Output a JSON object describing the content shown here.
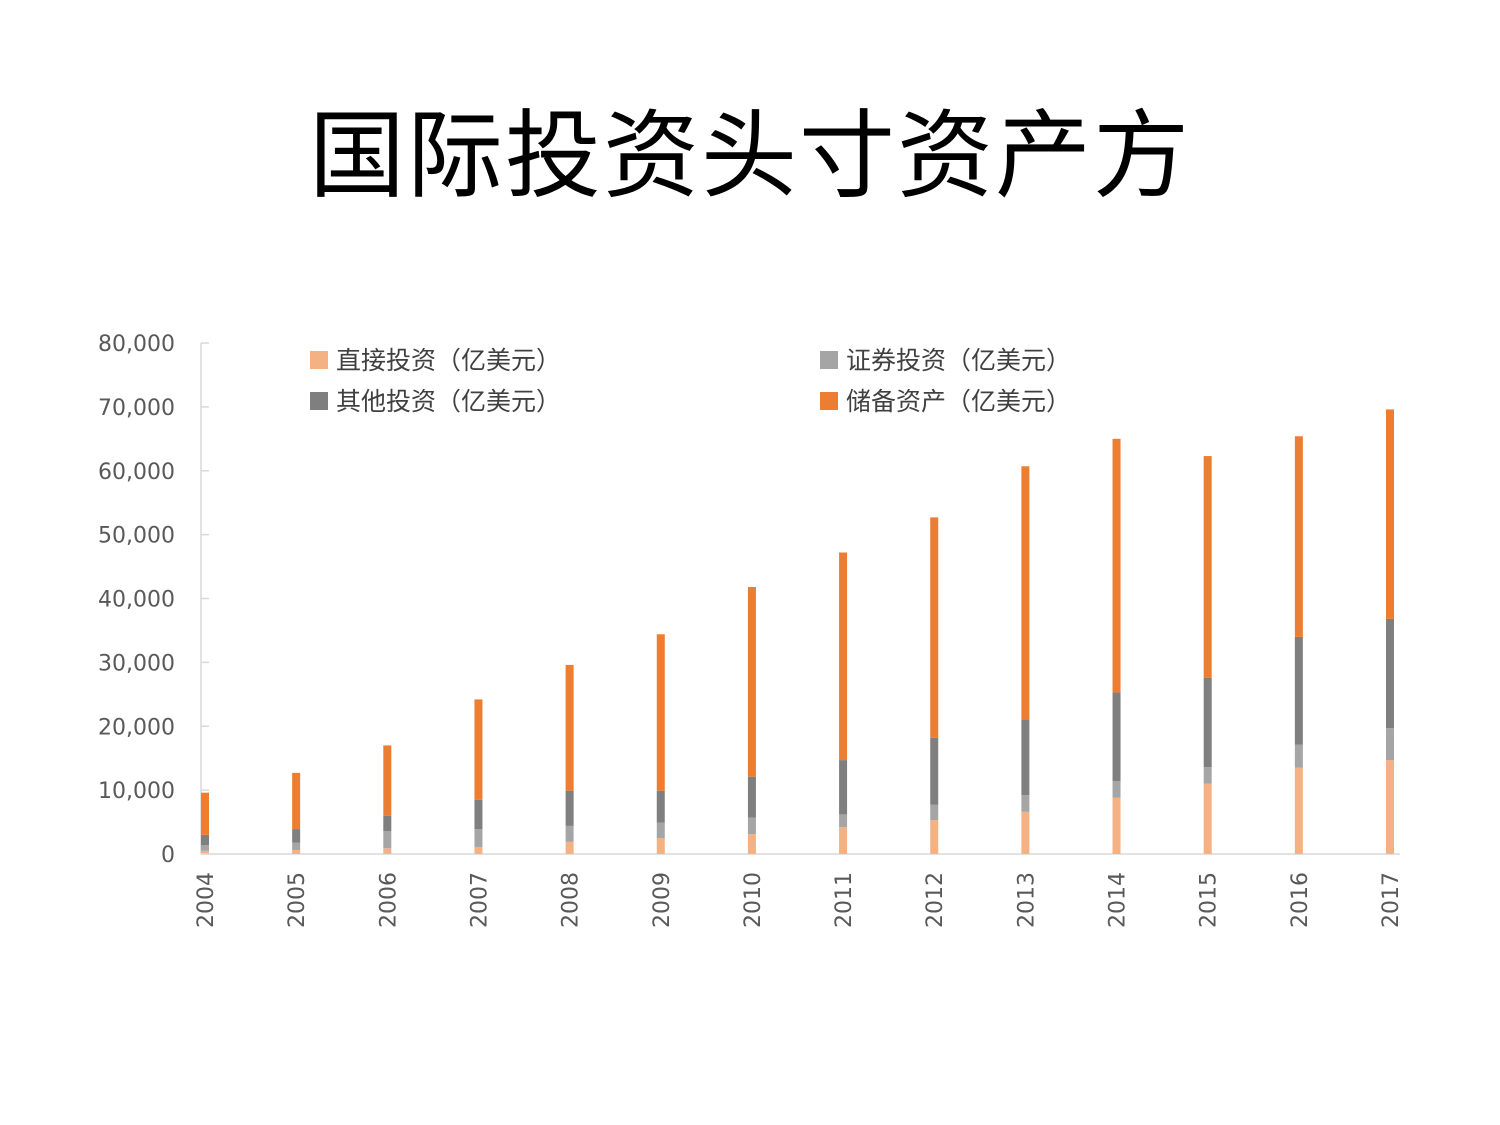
{
  "slide": {
    "title": "国际投资头寸资产方"
  },
  "chart_data": {
    "type": "bar",
    "stacked": true,
    "title": "",
    "xlabel": "",
    "ylabel": "",
    "ylim": [
      0,
      80000
    ],
    "yticks": [
      0,
      10000,
      20000,
      30000,
      40000,
      50000,
      60000,
      70000,
      80000
    ],
    "ytick_labels": [
      "0",
      "10,000",
      "20,000",
      "30,000",
      "40,000",
      "50,000",
      "60,000",
      "70,000",
      "80,000"
    ],
    "grid": false,
    "legend_position": "top",
    "categories": [
      "2004",
      "2005",
      "2006",
      "2007",
      "2008",
      "2009",
      "2010",
      "2011",
      "2012",
      "2013",
      "2014",
      "2015",
      "2016",
      "2017"
    ],
    "series": [
      {
        "name": "直接投资（亿美元）",
        "color": "#F4B183",
        "values": [
          500,
          600,
          900,
          1100,
          1900,
          2500,
          3100,
          4200,
          5300,
          6600,
          8800,
          11000,
          13500,
          14700
        ]
      },
      {
        "name": "证券投资（亿美元）",
        "color": "#A5A5A5",
        "values": [
          900,
          1200,
          2700,
          2800,
          2500,
          2400,
          2600,
          2000,
          2400,
          2600,
          2600,
          2600,
          3600,
          5000
        ]
      },
      {
        "name": "其他投资（亿美元）",
        "color": "#7F7F7F",
        "values": [
          1600,
          2100,
          2400,
          4600,
          5500,
          5000,
          6400,
          8500,
          10500,
          11900,
          13900,
          14000,
          16900,
          17100
        ]
      },
      {
        "name": "储备资产（亿美元）",
        "color": "#ED7D31",
        "values": [
          6600,
          8800,
          11000,
          15700,
          19700,
          24500,
          29700,
          32500,
          34500,
          39600,
          39700,
          34700,
          31400,
          32800
        ]
      }
    ]
  }
}
